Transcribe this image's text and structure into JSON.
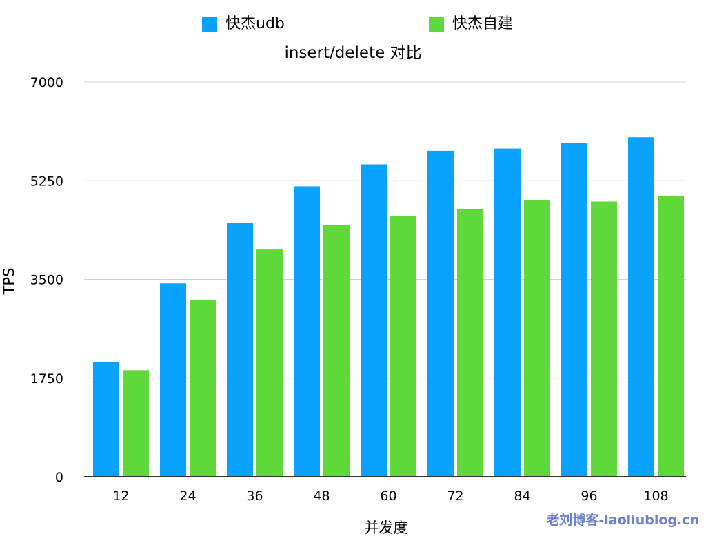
{
  "chart_data": {
    "type": "bar",
    "title": "insert/delete 对比",
    "xlabel": "并发度",
    "ylabel": "TPS",
    "categories": [
      "12",
      "24",
      "36",
      "48",
      "60",
      "72",
      "84",
      "96",
      "108"
    ],
    "series": [
      {
        "name": "快杰udb",
        "color": "#0aa2ff",
        "values": [
          2030,
          3430,
          4500,
          5150,
          5540,
          5780,
          5820,
          5920,
          6020
        ]
      },
      {
        "name": "快杰自建",
        "color": "#5fd83a",
        "values": [
          1890,
          3130,
          4030,
          4460,
          4630,
          4750,
          4910,
          4880,
          4980
        ]
      }
    ],
    "ylim": [
      0,
      7000
    ],
    "yticks": [
      "0",
      "1750",
      "3500",
      "5250",
      "7000"
    ],
    "grid": true,
    "legend_position": "top"
  },
  "watermark": "老刘博客-laoliublog.cn"
}
